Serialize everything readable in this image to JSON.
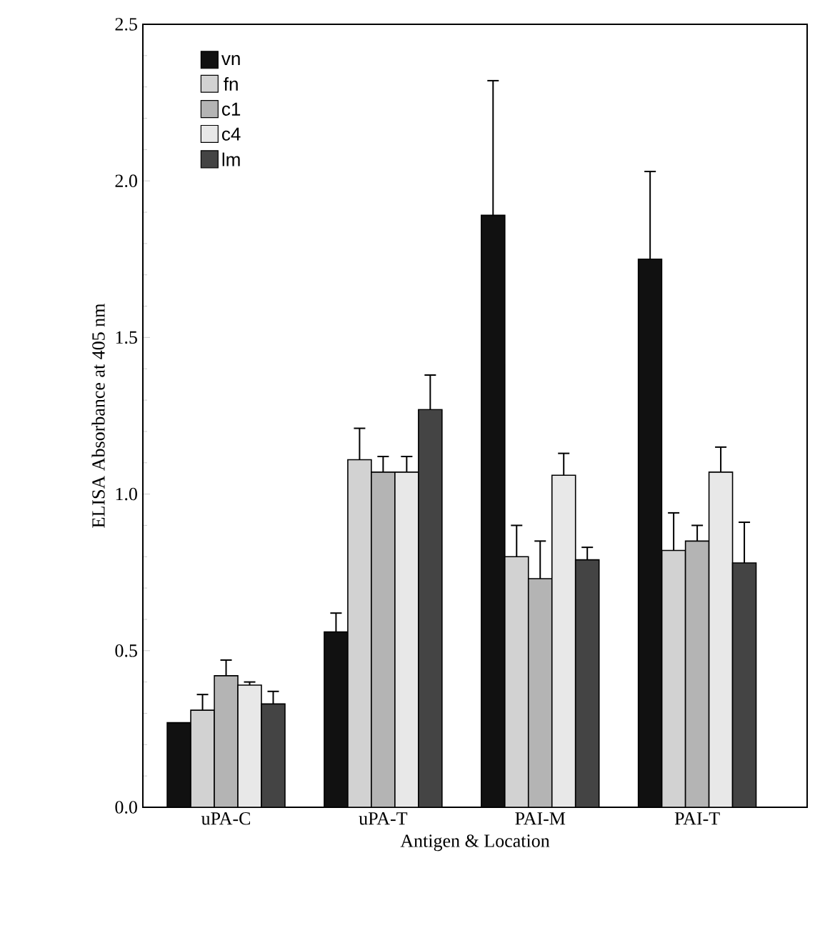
{
  "chart_data": {
    "type": "bar",
    "xlabel": "Antigen & Location",
    "ylabel": "ELISA Absorbance at 405 nm",
    "categories": [
      "uPA-C",
      "uPA-T",
      "PAI-M",
      "PAI-T"
    ],
    "series": [
      {
        "name": "vn",
        "color": "#111111",
        "values": [
          0.27,
          0.56,
          1.89,
          1.75
        ],
        "errors": [
          null,
          0.06,
          0.43,
          0.28
        ]
      },
      {
        "name": "fn",
        "color": "#d2d2d2",
        "values": [
          0.31,
          1.11,
          0.8,
          0.82
        ],
        "errors": [
          0.05,
          0.1,
          0.1,
          0.12
        ]
      },
      {
        "name": "c1",
        "color": "#b4b4b4",
        "values": [
          0.42,
          1.07,
          0.73,
          0.85
        ],
        "errors": [
          0.05,
          0.05,
          0.12,
          0.05
        ]
      },
      {
        "name": "c4",
        "color": "#e8e8e8",
        "values": [
          0.39,
          1.07,
          1.06,
          1.07
        ],
        "errors": [
          0.01,
          0.05,
          0.07,
          0.08
        ]
      },
      {
        "name": "lm",
        "color": "#444444",
        "values": [
          0.33,
          1.27,
          0.79,
          0.78
        ],
        "errors": [
          0.04,
          0.11,
          0.04,
          0.13
        ]
      }
    ],
    "ylim": [
      0,
      2.5
    ],
    "yticks": [
      {
        "value": 0,
        "label": "0.0"
      },
      {
        "value": 0.5,
        "label": "0.5"
      },
      {
        "value": 1,
        "label": "1.0"
      },
      {
        "value": 1.5,
        "label": "1.5"
      },
      {
        "value": 2,
        "label": "2.0"
      },
      {
        "value": 2.5,
        "label": "2.5"
      }
    ],
    "grid": false,
    "legend": "top left"
  }
}
